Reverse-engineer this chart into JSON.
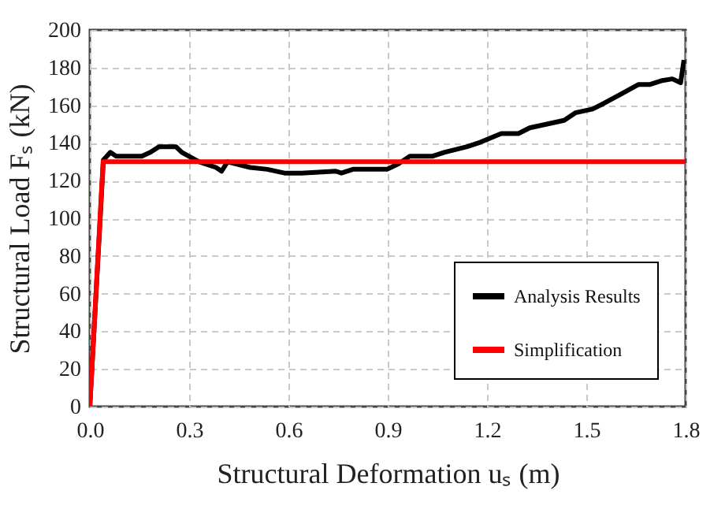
{
  "chart_data": {
    "type": "line",
    "xlabel": "Structural Deformation  uₛ (m)",
    "ylabel": "Structural Load  Fₛ (kN)",
    "xlim": [
      0,
      1.8
    ],
    "xticks": [
      {
        "value": 0,
        "label": "0.0"
      },
      0.3,
      0.6,
      0.9,
      1.2,
      1.5,
      1.8
    ],
    "ylim": [
      0,
      200
    ],
    "yticks": [
      0,
      20,
      40,
      60,
      80,
      100,
      120,
      140,
      160,
      180,
      200
    ],
    "grid": true,
    "legend": "bottom right",
    "line_style": "solid",
    "series": [
      {
        "name": "Analysis Results",
        "color": "#000000",
        "x": [
          0,
          0.041,
          0.062,
          0.079,
          0.157,
          0.183,
          0.209,
          0.26,
          0.278,
          0.33,
          0.381,
          0.398,
          0.416,
          0.484,
          0.536,
          0.588,
          0.64,
          0.743,
          0.76,
          0.795,
          0.898,
          0.933,
          0.967,
          1.036,
          1.071,
          1.14,
          1.174,
          1.243,
          1.295,
          1.329,
          1.381,
          1.433,
          1.467,
          1.519,
          1.553,
          1.605,
          1.657,
          1.691,
          1.726,
          1.76,
          1.785,
          1.795
        ],
        "values": [
          0,
          131,
          135,
          133,
          133,
          135,
          138,
          138,
          135,
          130,
          127,
          125,
          130,
          127,
          126,
          124,
          124,
          125,
          124,
          126,
          126,
          129,
          133,
          133,
          135,
          138,
          140,
          145,
          145,
          148,
          150,
          152,
          156,
          158,
          161,
          166,
          171,
          171,
          173,
          174,
          172,
          184
        ]
      },
      {
        "name": "Simplification",
        "color": "#ff0000",
        "x": [
          0,
          0.04,
          1.8
        ],
        "values": [
          0,
          130,
          130
        ]
      }
    ]
  }
}
